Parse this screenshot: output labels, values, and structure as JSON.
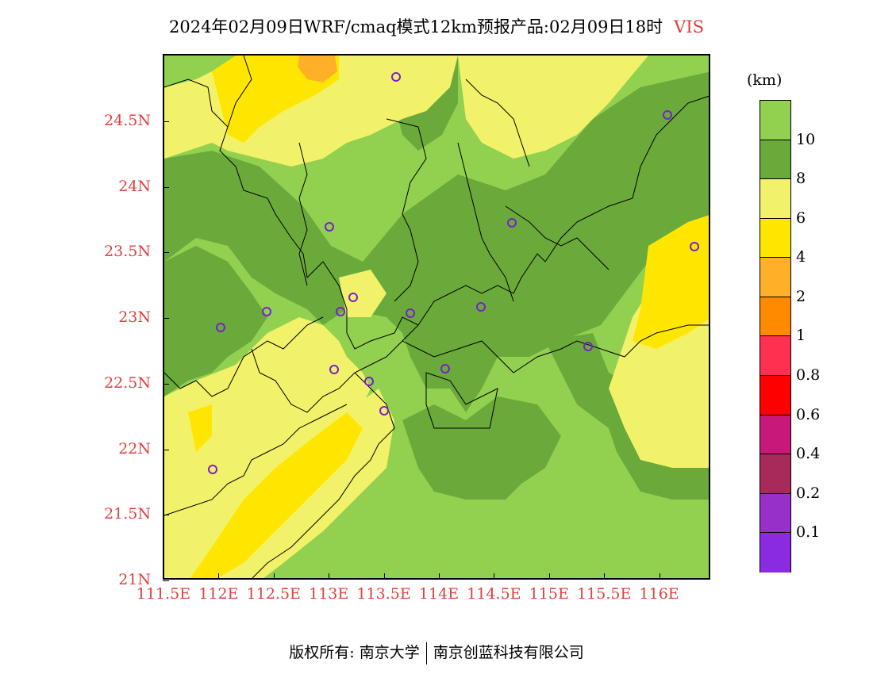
{
  "title": {
    "text": "2024年02月09日WRF/cmaq模式12km预报产品:02月09日18时",
    "variable": "VIS"
  },
  "map": {
    "lat_labels": [
      "24.5N",
      "24N",
      "23.5N",
      "23N",
      "22.5N",
      "22N",
      "21.5N",
      "21N"
    ],
    "lon_labels": [
      "111.5E",
      "112E",
      "112.5E",
      "113E",
      "113.5E",
      "114E",
      "114.5E",
      "115E",
      "115.5E",
      "116E"
    ],
    "colors": {
      "vis_gt10": "#92d050",
      "vis_8_10": "#6aaa3a",
      "vis_6_8": "#f2f26a",
      "vis_4_6": "#ffe600",
      "vis_2_4": "#ffb028",
      "border": "#000000",
      "station": "#7a1fd0"
    }
  },
  "colorbar": {
    "unit": "(km)",
    "labels": [
      "10",
      "8",
      "6",
      "4",
      "2",
      "1",
      "0.8",
      "0.6",
      "0.4",
      "0.2",
      "0.1"
    ],
    "colors": [
      "#92d050",
      "#6aaa3a",
      "#f2f26a",
      "#ffe600",
      "#ffb028",
      "#ff8a00",
      "#ff3050",
      "#ff0000",
      "#c8187a",
      "#a82a5a",
      "#9630c8",
      "#8a2be2"
    ]
  },
  "footer": {
    "left": "版权所有: 南京大学",
    "right": "南京创蓝科技有限公司"
  }
}
